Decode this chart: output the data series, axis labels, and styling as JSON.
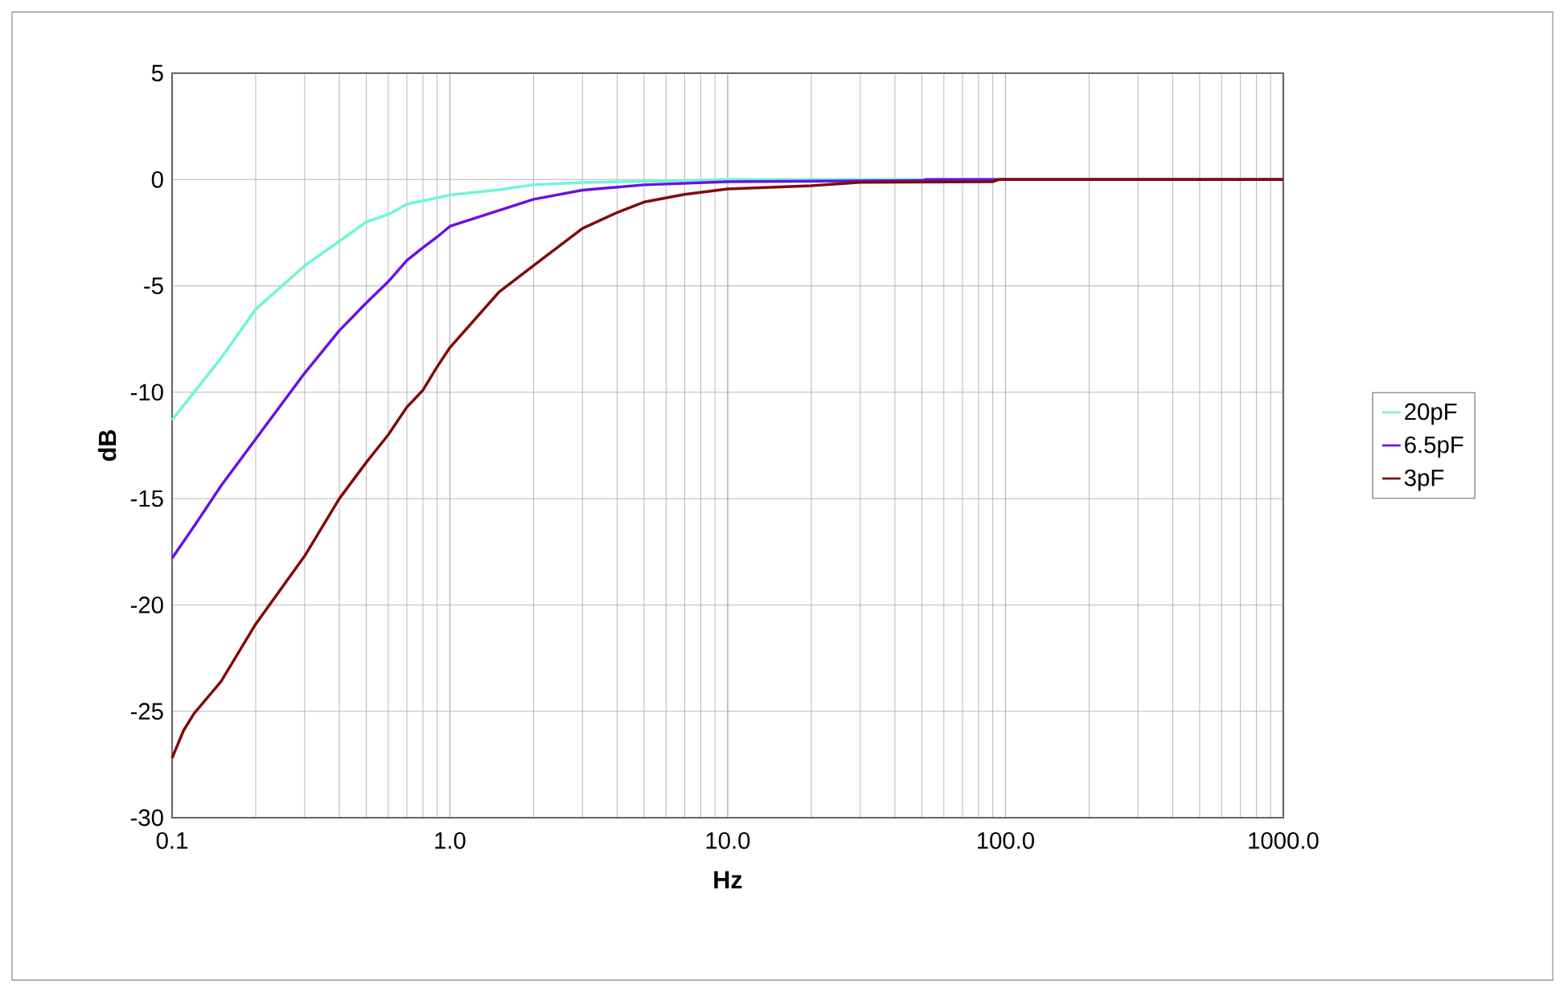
{
  "chart_data": {
    "type": "line",
    "xlabel": "Hz",
    "ylabel": "dB",
    "log": "x",
    "grid": true,
    "legend": "right",
    "marker": "none",
    "line_style": "solid",
    "xlim": [
      0.1,
      1000
    ],
    "ylim": [
      -30,
      5
    ],
    "xticks": [
      0.1,
      {
        "value": 1,
        "label": "1.0"
      },
      {
        "value": 10,
        "label": "10.0"
      },
      {
        "value": 100,
        "label": "100.0"
      },
      {
        "value": 1000,
        "label": "1000.0"
      }
    ],
    "yticks": [
      -30,
      -25,
      -20,
      -15,
      -10,
      -5,
      0,
      5
    ],
    "series": [
      {
        "name": "20pF",
        "color": "#6ff5d8",
        "x": [
          0.1,
          0.12,
          0.15,
          0.2,
          0.3,
          0.4,
          0.5,
          0.6,
          0.7,
          0.8,
          1.0,
          1.5,
          2,
          3,
          8,
          10,
          100,
          1000
        ],
        "values": [
          -11.3,
          -10.0,
          -8.4,
          -6.1,
          -4.05,
          -2.9,
          -2.0,
          -1.64,
          -1.16,
          -1.0,
          -0.73,
          -0.48,
          -0.25,
          -0.14,
          -0.04,
          0,
          0,
          0
        ]
      },
      {
        "name": "6.5pF",
        "color": "#6a10e6",
        "x": [
          0.1,
          0.12,
          0.15,
          0.2,
          0.3,
          0.4,
          0.5,
          0.6,
          0.7,
          0.8,
          0.9,
          1.0,
          2,
          3,
          5,
          10,
          50,
          52,
          100,
          1000
        ],
        "values": [
          -17.8,
          -16.3,
          -14.4,
          -12.2,
          -9.1,
          -7.1,
          -5.8,
          -4.8,
          -3.8,
          -3.2,
          -2.7,
          -2.2,
          -0.93,
          -0.5,
          -0.25,
          -0.1,
          -0.05,
          0,
          0,
          0
        ]
      },
      {
        "name": "3pF",
        "color": "#7f0a0a",
        "x": [
          0.1,
          0.11,
          0.12,
          0.15,
          0.2,
          0.3,
          0.4,
          0.5,
          0.6,
          0.7,
          0.8,
          0.9,
          1.0,
          1.5,
          2,
          3,
          4,
          5,
          7,
          10,
          20,
          30,
          90,
          95,
          1000
        ],
        "values": [
          -27.2,
          -25.9,
          -25.1,
          -23.6,
          -20.9,
          -17.7,
          -15.0,
          -13.3,
          -12.0,
          -10.7,
          -9.9,
          -8.8,
          -7.9,
          -5.3,
          -4.05,
          -2.3,
          -1.55,
          -1.06,
          -0.7,
          -0.44,
          -0.29,
          -0.13,
          -0.1,
          0,
          0
        ]
      }
    ]
  }
}
